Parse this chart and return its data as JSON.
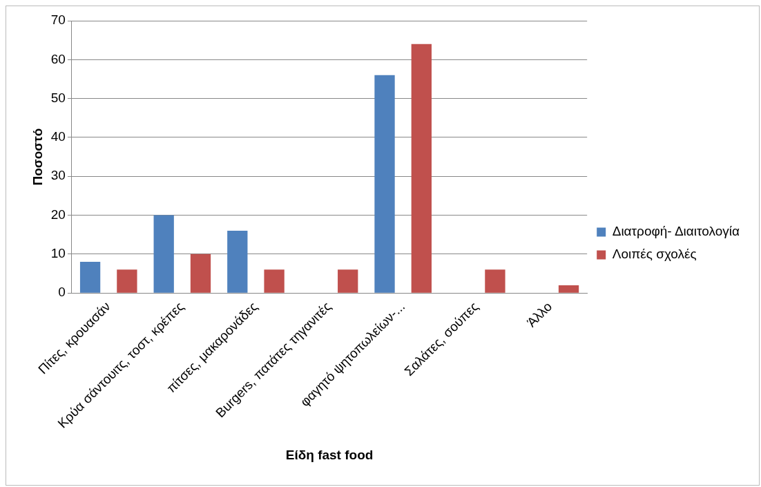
{
  "chart_data": {
    "type": "bar",
    "xlabel": "Είδη fast food",
    "ylabel": "Ποσοστό",
    "categories": [
      "Πίτες, κρουασάν",
      "Κρύα σάντουιτς, τοστ, κρέπες",
      "πίτσες, μακαρονάδες",
      "Burgers, πατάτες τηγανιτές",
      "φαγητό ψητοπωλείων-...",
      "Σαλάτες, σούπες",
      "Άλλο"
    ],
    "series": [
      {
        "name": "Διατροφή- Διαιτολογία",
        "color": "#4f81bd",
        "values": [
          8,
          20,
          16,
          0,
          56,
          0,
          0
        ]
      },
      {
        "name": "Λοιπές σχολές",
        "color": "#c0504d",
        "values": [
          6,
          10,
          6,
          6,
          64,
          6,
          2
        ]
      }
    ],
    "ylim": [
      0,
      70
    ],
    "yticks": [
      0,
      10,
      20,
      30,
      40,
      50,
      60,
      70
    ],
    "grid": "y",
    "legend": "right"
  }
}
